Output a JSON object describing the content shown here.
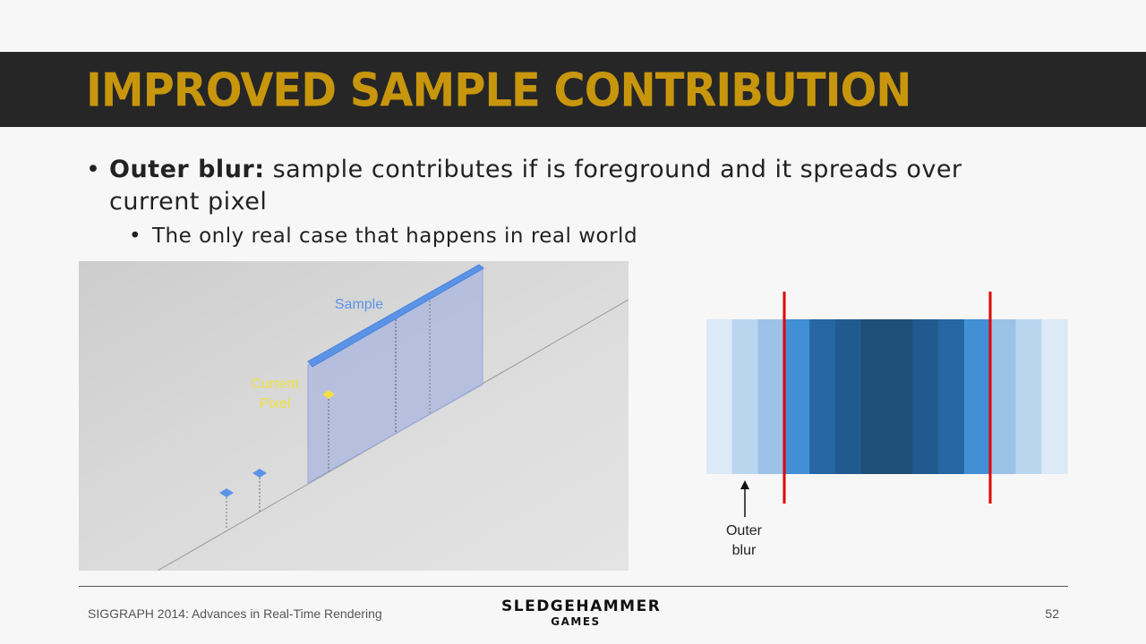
{
  "slide": {
    "title": "IMPROVED SAMPLE CONTRIBUTION",
    "colors": {
      "title_bar": "#262626",
      "title_text": "#c8960c"
    }
  },
  "bullets": {
    "bullet_char": "•",
    "main_bold": "Outer blur:",
    "main_text": " sample contributes if is foreground and it spreads over current pixel",
    "sub_text": "The only real case that happens in real world"
  },
  "scene": {
    "sample_label": "Sample",
    "current_pixel_label_1": "Current",
    "current_pixel_label_2": "Pixel",
    "colors": {
      "sample": "#5b93e6",
      "current_pixel": "#f0e040",
      "wall": "#a9b4e0"
    }
  },
  "strip": {
    "band_colors": [
      "#dce9f7",
      "#bad6ef",
      "#9bc2e6",
      "#428fd6",
      "#2566a3",
      "#215a8e",
      "#1e4f79",
      "#1e4f79",
      "#215a8e",
      "#2566a3",
      "#428fd6",
      "#9bc2e6",
      "#bad6ef",
      "#dce9f7"
    ],
    "marker_color": "#e00000",
    "outer_label_1": "Outer",
    "outer_label_2": "blur"
  },
  "footer": {
    "left_text": "SIGGRAPH 2014: Advances in Real-Time Rendering",
    "logo_line1": "SLEDGEHAMMER",
    "logo_line2": "GAMES",
    "page_number": "52"
  }
}
